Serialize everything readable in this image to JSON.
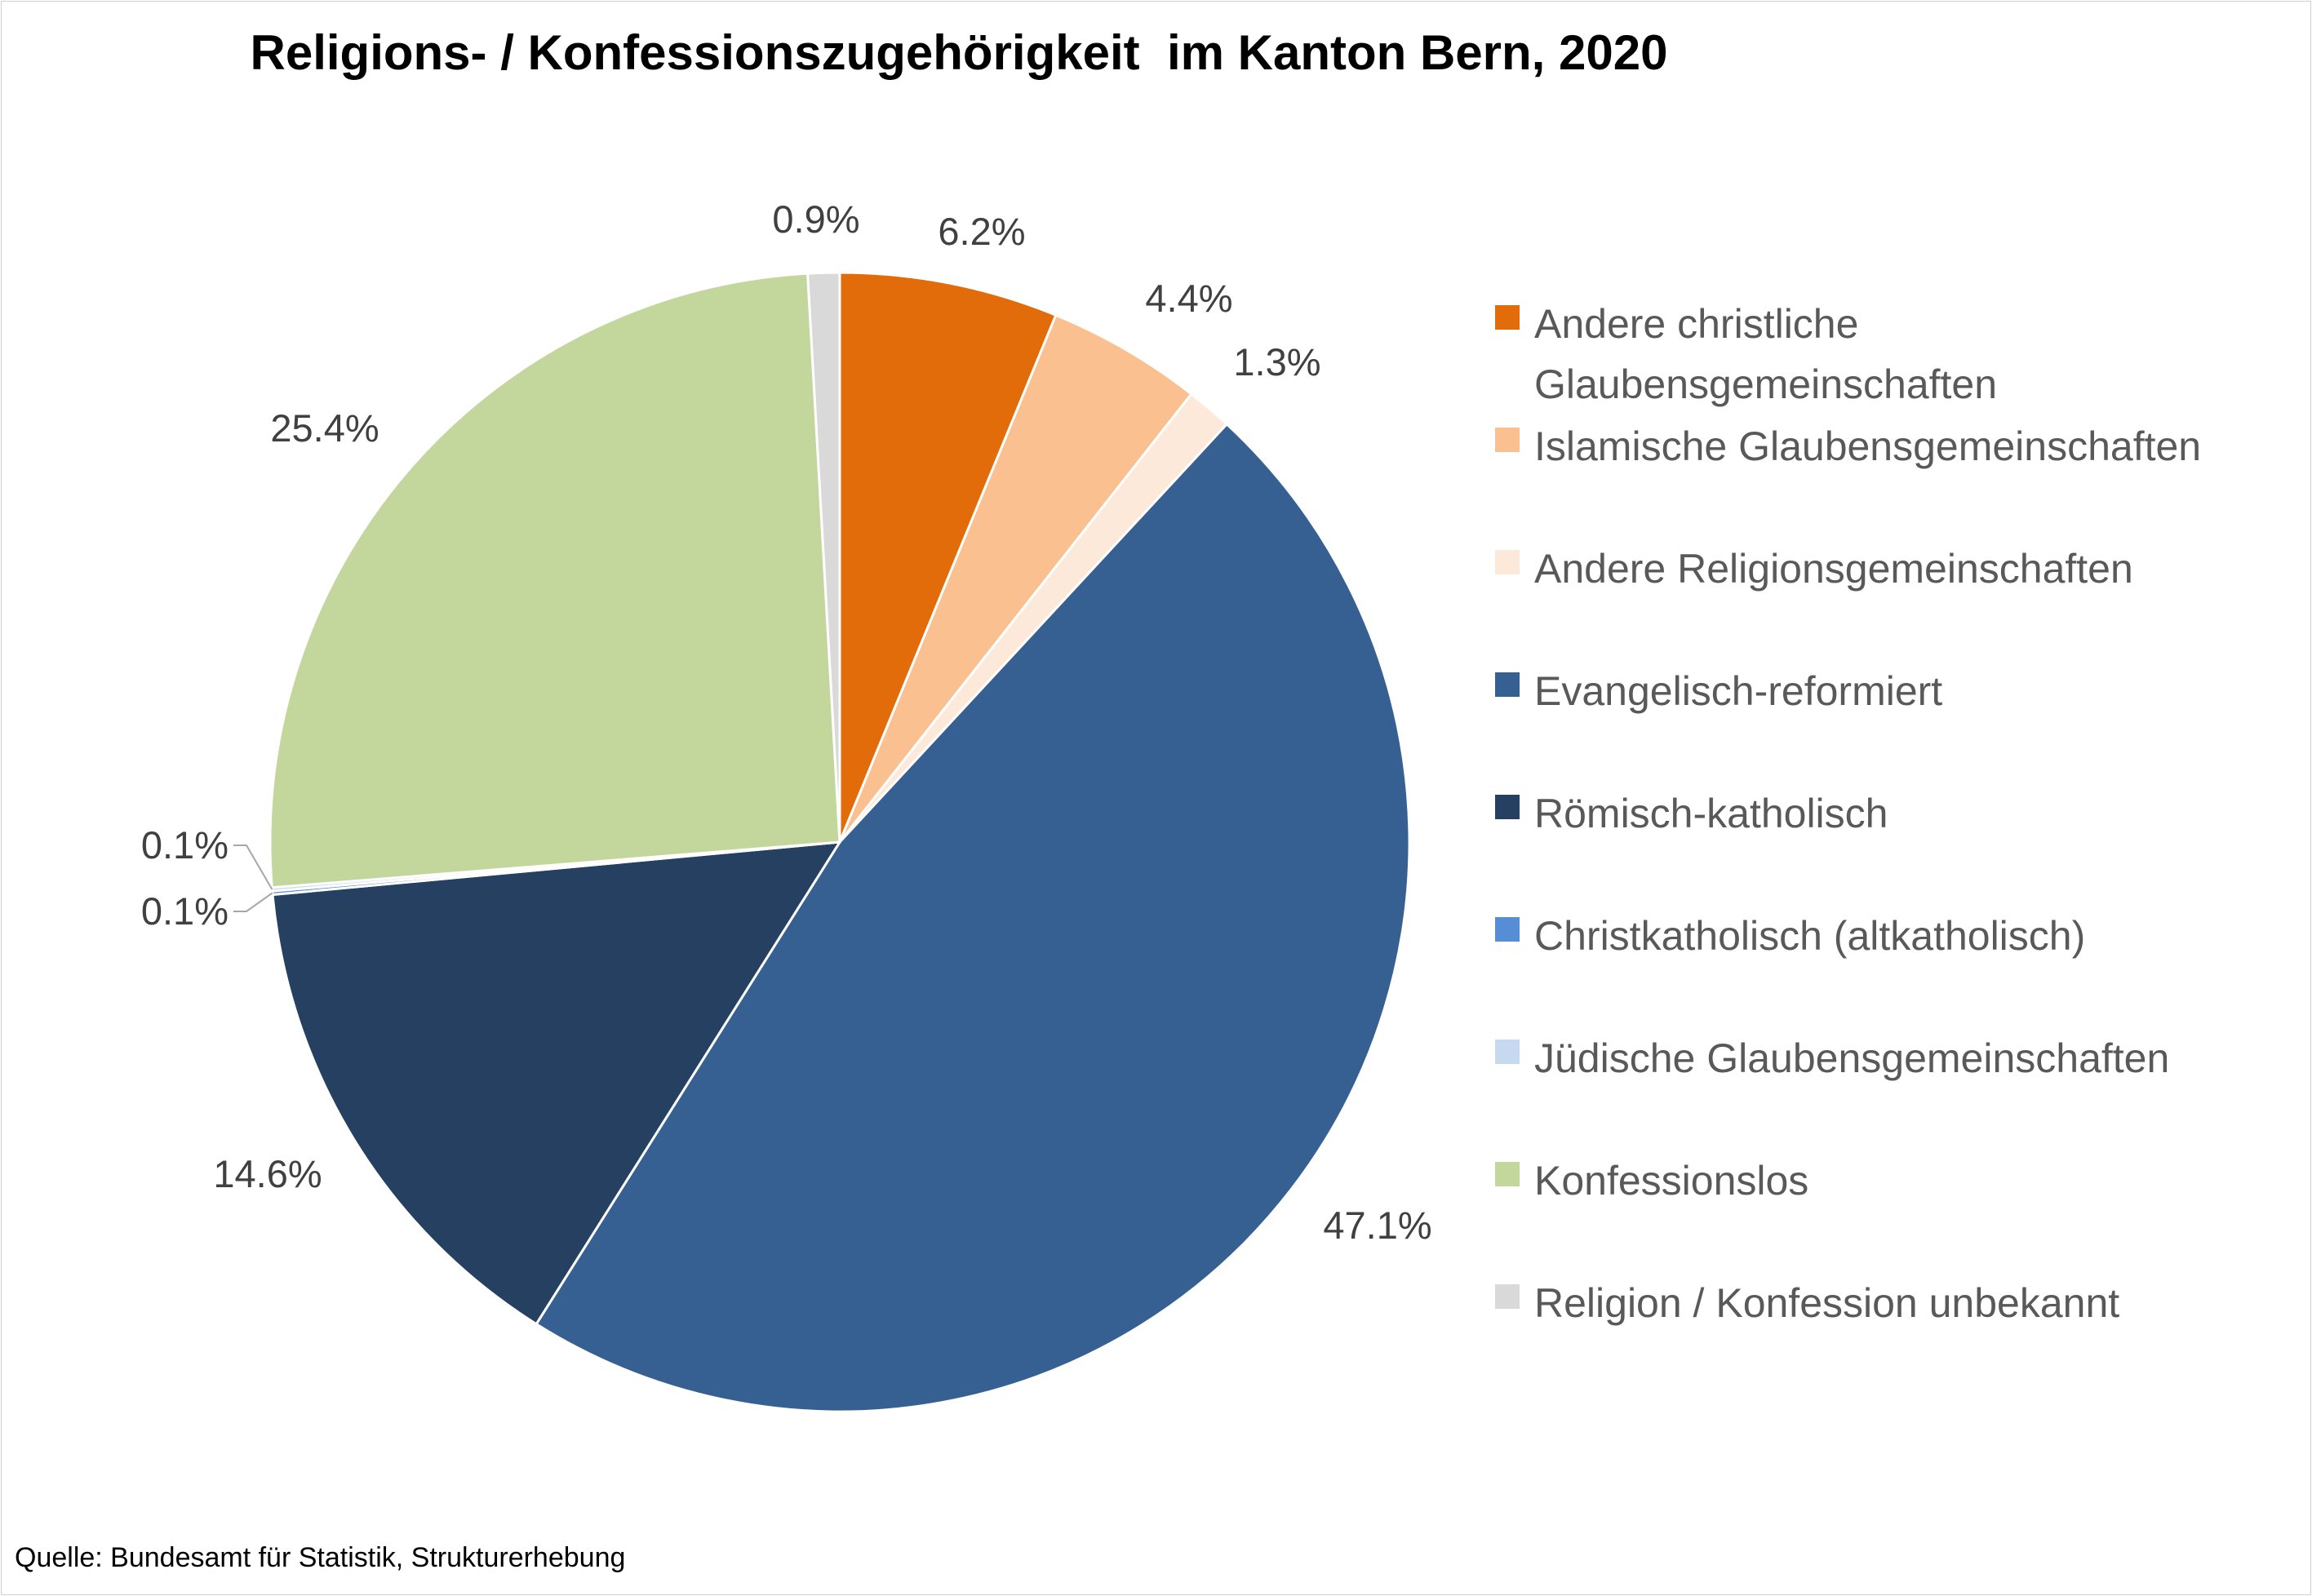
{
  "title": "Religions- / Konfessionszugehörigkeit  im Kanton Bern, 2020",
  "source": "Quelle: Bundesamt für Statistik, Strukturerhebung",
  "chart_data": {
    "type": "pie",
    "title": "Religions- / Konfessionszugehörigkeit  im Kanton Bern, 2020",
    "unit": "%",
    "legend_position": "right",
    "slices": [
      {
        "name": "Andere christliche Glaubensgemeinschaften",
        "value": 6.2,
        "label": "6.2%",
        "color": "#E36C0A"
      },
      {
        "name": "Islamische Glaubensgemeinschaften",
        "value": 4.4,
        "label": "4.4%",
        "color": "#FAC090"
      },
      {
        "name": "Andere Religionsgemeinschaften",
        "value": 1.3,
        "label": "1.3%",
        "color": "#FDE9D9"
      },
      {
        "name": "Evangelisch-reformiert",
        "value": 47.1,
        "label": "47.1%",
        "color": "#376092"
      },
      {
        "name": "Römisch-katholisch",
        "value": 14.6,
        "label": "14.6%",
        "color": "#254061"
      },
      {
        "name": "Christkatholisch (altkatholisch)",
        "value": 0.1,
        "label": "0.1%",
        "color": "#558ED5"
      },
      {
        "name": "Jüdische Glaubensgemeinschaften",
        "value": 0.1,
        "label": "0.1%",
        "color": "#C6D9F1"
      },
      {
        "name": "Konfessionslos",
        "value": 25.4,
        "label": "25.4%",
        "color": "#C3D69B"
      },
      {
        "name": "Religion / Konfession unbekannt",
        "value": 0.9,
        "label": "0.9%",
        "color": "#D9D9D9"
      }
    ]
  }
}
